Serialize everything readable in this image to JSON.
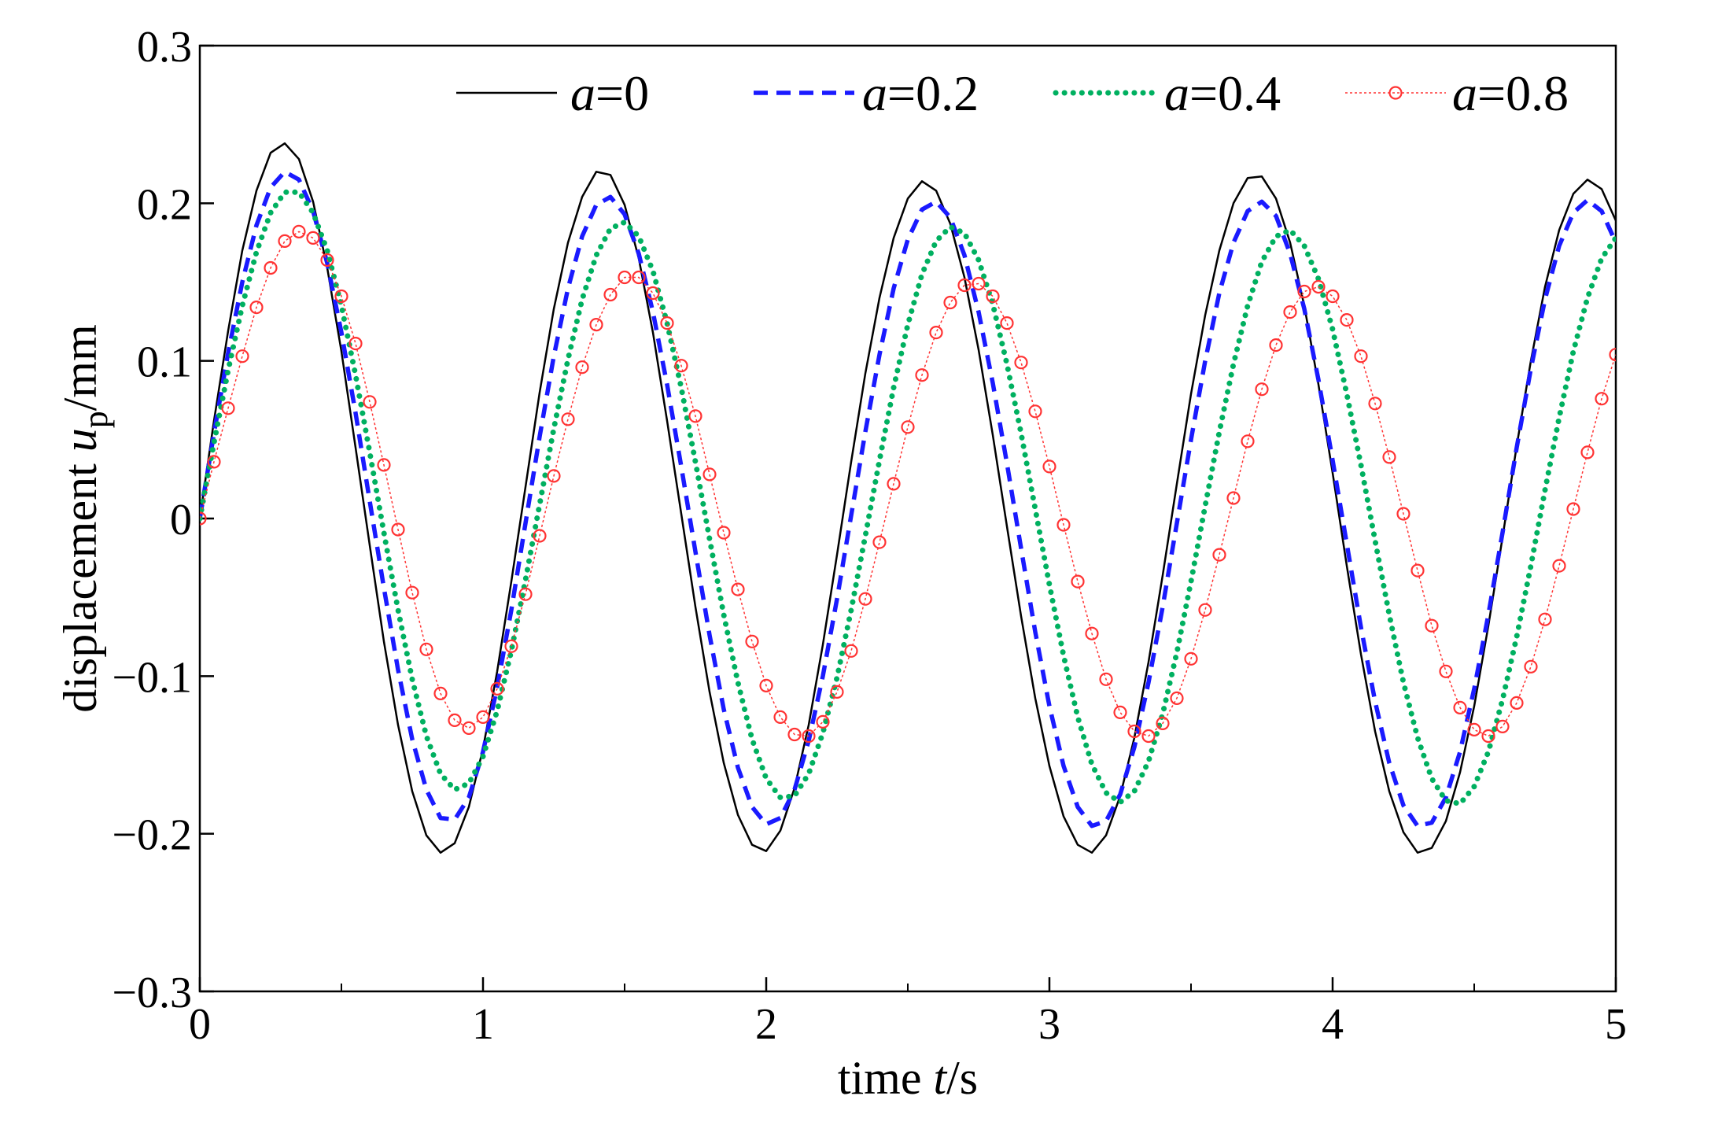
{
  "chart_data": {
    "type": "line",
    "title": "",
    "xlabel": "time t/s",
    "xlabel_parts": [
      "time ",
      "t",
      "/s"
    ],
    "ylabel": "displacement up/mm",
    "ylabel_parts": [
      "displacement ",
      "u",
      "p",
      "/mm"
    ],
    "xlim": [
      0,
      5
    ],
    "ylim": [
      -0.3,
      0.3
    ],
    "xticks": [
      0,
      1,
      2,
      3,
      4,
      5
    ],
    "xtick_labels": [
      "0",
      "1",
      "2",
      "3",
      "4",
      "5"
    ],
    "xminor": [
      0.5,
      1.5,
      2.5,
      3.5,
      4.5
    ],
    "yticks": [
      -0.3,
      -0.2,
      -0.1,
      0,
      0.1,
      0.2,
      0.3
    ],
    "ytick_labels": [
      "−0.3",
      "−0.2",
      "−0.1",
      "0",
      "0.1",
      "0.2",
      "0.3"
    ],
    "grid": false,
    "legend_position": "top",
    "series": [
      {
        "name": "a=0",
        "name_parts": [
          "a",
          "=0"
        ],
        "color": "#000000",
        "style": "solid",
        "x": [
          0,
          0.05,
          0.1,
          0.15,
          0.2,
          0.25,
          0.3,
          0.35,
          0.4,
          0.45,
          0.5,
          0.55,
          0.6,
          0.65,
          0.7,
          0.75,
          0.8,
          0.85,
          0.9,
          0.95,
          1.0,
          1.05,
          1.1,
          1.15,
          1.2,
          1.25,
          1.3,
          1.35,
          1.4,
          1.45,
          1.5,
          1.55,
          1.6,
          1.65,
          1.7,
          1.75,
          1.8,
          1.85,
          1.9,
          1.95,
          2.0,
          2.05,
          2.1,
          2.15,
          2.2,
          2.25,
          2.3,
          2.35,
          2.4,
          2.45,
          2.5,
          2.55,
          2.6,
          2.65,
          2.7,
          2.75,
          2.8,
          2.85,
          2.9,
          2.95,
          3.0,
          3.05,
          3.1,
          3.15,
          3.2,
          3.25,
          3.3,
          3.35,
          3.4,
          3.45,
          3.5,
          3.55,
          3.6,
          3.65,
          3.7,
          3.75,
          3.8,
          3.85,
          3.9,
          3.95,
          4.0,
          4.05,
          4.1,
          4.15,
          4.2,
          4.25,
          4.3,
          4.35,
          4.4,
          4.45,
          4.5,
          4.55,
          4.6,
          4.65,
          4.7,
          4.75,
          4.8,
          4.85,
          4.9,
          4.95,
          5.0
        ],
        "y": [
          0.0,
          0.062,
          0.119,
          0.17,
          0.208,
          0.232,
          0.238,
          0.228,
          0.201,
          0.159,
          0.106,
          0.045,
          -0.017,
          -0.078,
          -0.131,
          -0.173,
          -0.201,
          -0.212,
          -0.206,
          -0.183,
          -0.146,
          -0.097,
          -0.04,
          0.02,
          0.08,
          0.133,
          0.175,
          0.204,
          0.22,
          0.218,
          0.199,
          0.165,
          0.118,
          0.062,
          0.003,
          -0.056,
          -0.11,
          -0.155,
          -0.188,
          -0.207,
          -0.211,
          -0.198,
          -0.171,
          -0.131,
          -0.08,
          -0.023,
          0.036,
          0.092,
          0.14,
          0.178,
          0.203,
          0.214,
          0.208,
          0.187,
          0.153,
          0.107,
          0.053,
          -0.005,
          -0.062,
          -0.114,
          -0.157,
          -0.189,
          -0.207,
          -0.212,
          -0.201,
          -0.176,
          -0.139,
          -0.091,
          -0.036,
          0.022,
          0.079,
          0.129,
          0.17,
          0.2,
          0.216,
          0.217,
          0.203,
          0.175,
          0.135,
          0.085,
          0.029,
          -0.03,
          -0.086,
          -0.135,
          -0.173,
          -0.199,
          -0.212,
          -0.209,
          -0.192,
          -0.161,
          -0.119,
          -0.068,
          -0.012,
          0.046,
          0.1,
          0.147,
          0.183,
          0.206,
          0.215,
          0.209,
          0.189
        ]
      },
      {
        "name": "a=0.2",
        "name_parts": [
          "a",
          "=0.2"
        ],
        "color": "#1a1aff",
        "style": "dashed",
        "x": [
          0,
          0.05,
          0.1,
          0.15,
          0.2,
          0.25,
          0.3,
          0.35,
          0.4,
          0.45,
          0.5,
          0.55,
          0.6,
          0.65,
          0.7,
          0.75,
          0.8,
          0.85,
          0.9,
          0.95,
          1.0,
          1.05,
          1.1,
          1.15,
          1.2,
          1.25,
          1.3,
          1.35,
          1.4,
          1.45,
          1.5,
          1.55,
          1.6,
          1.65,
          1.7,
          1.75,
          1.8,
          1.85,
          1.9,
          1.95,
          2.0,
          2.05,
          2.1,
          2.15,
          2.2,
          2.25,
          2.3,
          2.35,
          2.4,
          2.45,
          2.5,
          2.55,
          2.6,
          2.65,
          2.7,
          2.75,
          2.8,
          2.85,
          2.9,
          2.95,
          3.0,
          3.05,
          3.1,
          3.15,
          3.2,
          3.25,
          3.3,
          3.35,
          3.4,
          3.45,
          3.5,
          3.55,
          3.6,
          3.65,
          3.7,
          3.75,
          3.8,
          3.85,
          3.9,
          3.95,
          4.0,
          4.05,
          4.1,
          4.15,
          4.2,
          4.25,
          4.3,
          4.35,
          4.4,
          4.45,
          4.5,
          4.55,
          4.6,
          4.65,
          4.7,
          4.75,
          4.8,
          4.85,
          4.9,
          4.95,
          5.0
        ],
        "y": [
          0.0,
          0.054,
          0.105,
          0.15,
          0.186,
          0.21,
          0.22,
          0.215,
          0.195,
          0.162,
          0.118,
          0.067,
          0.011,
          -0.044,
          -0.096,
          -0.14,
          -0.172,
          -0.19,
          -0.191,
          -0.177,
          -0.148,
          -0.107,
          -0.058,
          -0.003,
          0.052,
          0.103,
          0.146,
          0.179,
          0.199,
          0.204,
          0.193,
          0.168,
          0.131,
          0.085,
          0.033,
          -0.021,
          -0.074,
          -0.121,
          -0.158,
          -0.183,
          -0.194,
          -0.19,
          -0.172,
          -0.141,
          -0.1,
          -0.051,
          0.002,
          0.055,
          0.104,
          0.146,
          0.177,
          0.196,
          0.201,
          0.191,
          0.167,
          0.131,
          0.086,
          0.035,
          -0.019,
          -0.072,
          -0.119,
          -0.157,
          -0.183,
          -0.195,
          -0.192,
          -0.175,
          -0.145,
          -0.104,
          -0.056,
          -0.003,
          0.05,
          0.1,
          0.143,
          0.175,
          0.195,
          0.201,
          0.192,
          0.168,
          0.133,
          0.088,
          0.037,
          -0.016,
          -0.069,
          -0.116,
          -0.155,
          -0.182,
          -0.195,
          -0.193,
          -0.177,
          -0.148,
          -0.108,
          -0.061,
          -0.009,
          0.045,
          0.095,
          0.139,
          0.173,
          0.194,
          0.202,
          0.195,
          0.175
        ]
      },
      {
        "name": "a=0.4",
        "name_parts": [
          "a",
          "=0.4"
        ],
        "color": "#00b060",
        "style": "dotted",
        "x": [
          0,
          0.05,
          0.1,
          0.15,
          0.2,
          0.25,
          0.3,
          0.35,
          0.4,
          0.45,
          0.5,
          0.55,
          0.6,
          0.65,
          0.7,
          0.75,
          0.8,
          0.85,
          0.9,
          0.95,
          1.0,
          1.05,
          1.1,
          1.15,
          1.2,
          1.25,
          1.3,
          1.35,
          1.4,
          1.45,
          1.5,
          1.55,
          1.6,
          1.65,
          1.7,
          1.75,
          1.8,
          1.85,
          1.9,
          1.95,
          2.0,
          2.05,
          2.1,
          2.15,
          2.2,
          2.25,
          2.3,
          2.35,
          2.4,
          2.45,
          2.5,
          2.55,
          2.6,
          2.65,
          2.7,
          2.75,
          2.8,
          2.85,
          2.9,
          2.95,
          3.0,
          3.05,
          3.1,
          3.15,
          3.2,
          3.25,
          3.3,
          3.35,
          3.4,
          3.45,
          3.5,
          3.55,
          3.6,
          3.65,
          3.7,
          3.75,
          3.8,
          3.85,
          3.9,
          3.95,
          4.0,
          4.05,
          4.1,
          4.15,
          4.2,
          4.25,
          4.3,
          4.35,
          4.4,
          4.45,
          4.5,
          4.55,
          4.6,
          4.65,
          4.7,
          4.75,
          4.8,
          4.85,
          4.9,
          4.95,
          5.0
        ],
        "y": [
          0.0,
          0.048,
          0.094,
          0.135,
          0.169,
          0.194,
          0.207,
          0.207,
          0.194,
          0.17,
          0.135,
          0.091,
          0.042,
          -0.009,
          -0.058,
          -0.102,
          -0.138,
          -0.162,
          -0.172,
          -0.168,
          -0.151,
          -0.122,
          -0.084,
          -0.039,
          0.009,
          0.057,
          0.101,
          0.139,
          0.167,
          0.184,
          0.188,
          0.179,
          0.157,
          0.124,
          0.083,
          0.036,
          -0.013,
          -0.061,
          -0.104,
          -0.14,
          -0.165,
          -0.177,
          -0.176,
          -0.162,
          -0.136,
          -0.101,
          -0.058,
          -0.011,
          0.037,
          0.083,
          0.123,
          0.155,
          0.176,
          0.185,
          0.181,
          0.164,
          0.136,
          0.098,
          0.054,
          0.006,
          -0.042,
          -0.087,
          -0.126,
          -0.156,
          -0.174,
          -0.18,
          -0.173,
          -0.154,
          -0.124,
          -0.085,
          -0.04,
          0.008,
          0.055,
          0.098,
          0.135,
          0.163,
          0.179,
          0.183,
          0.173,
          0.152,
          0.12,
          0.079,
          0.034,
          -0.014,
          -0.061,
          -0.104,
          -0.139,
          -0.165,
          -0.179,
          -0.181,
          -0.17,
          -0.148,
          -0.115,
          -0.075,
          -0.03,
          0.018,
          0.064,
          0.106,
          0.14,
          0.165,
          0.178
        ]
      },
      {
        "name": "a=0.8",
        "name_parts": [
          "a",
          "=0.8"
        ],
        "color": "#ff3333",
        "style": "markers",
        "x": [
          0,
          0.05,
          0.1,
          0.15,
          0.2,
          0.25,
          0.3,
          0.35,
          0.4,
          0.45,
          0.5,
          0.55,
          0.6,
          0.65,
          0.7,
          0.75,
          0.8,
          0.85,
          0.9,
          0.95,
          1.0,
          1.05,
          1.1,
          1.15,
          1.2,
          1.25,
          1.3,
          1.35,
          1.4,
          1.45,
          1.5,
          1.55,
          1.6,
          1.65,
          1.7,
          1.75,
          1.8,
          1.85,
          1.9,
          1.95,
          2.0,
          2.05,
          2.1,
          2.15,
          2.2,
          2.25,
          2.3,
          2.35,
          2.4,
          2.45,
          2.5,
          2.55,
          2.6,
          2.65,
          2.7,
          2.75,
          2.8,
          2.85,
          2.9,
          2.95,
          3.0,
          3.05,
          3.1,
          3.15,
          3.2,
          3.25,
          3.3,
          3.35,
          3.4,
          3.45,
          3.5,
          3.55,
          3.6,
          3.65,
          3.7,
          3.75,
          3.8,
          3.85,
          3.9,
          3.95,
          4.0,
          4.05,
          4.1,
          4.15,
          4.2,
          4.25,
          4.3,
          4.35,
          4.4,
          4.45,
          4.5,
          4.55,
          4.6,
          4.65,
          4.7,
          4.75,
          4.8,
          4.85,
          4.9,
          4.95,
          5.0
        ],
        "y": [
          0.0,
          0.036,
          0.07,
          0.103,
          0.134,
          0.159,
          0.176,
          0.182,
          0.178,
          0.164,
          0.141,
          0.111,
          0.074,
          0.034,
          -0.007,
          -0.047,
          -0.083,
          -0.111,
          -0.128,
          -0.133,
          -0.126,
          -0.108,
          -0.081,
          -0.048,
          -0.011,
          0.027,
          0.063,
          0.096,
          0.123,
          0.142,
          0.153,
          0.153,
          0.143,
          0.124,
          0.097,
          0.065,
          0.028,
          -0.009,
          -0.045,
          -0.078,
          -0.106,
          -0.126,
          -0.137,
          -0.138,
          -0.129,
          -0.11,
          -0.084,
          -0.051,
          -0.015,
          0.022,
          0.058,
          0.091,
          0.118,
          0.137,
          0.148,
          0.149,
          0.141,
          0.124,
          0.099,
          0.068,
          0.033,
          -0.004,
          -0.04,
          -0.073,
          -0.102,
          -0.123,
          -0.135,
          -0.138,
          -0.13,
          -0.114,
          -0.089,
          -0.058,
          -0.023,
          0.013,
          0.049,
          0.082,
          0.11,
          0.131,
          0.144,
          0.147,
          0.141,
          0.126,
          0.103,
          0.073,
          0.039,
          0.003,
          -0.033,
          -0.068,
          -0.097,
          -0.12,
          -0.134,
          -0.138,
          -0.132,
          -0.117,
          -0.094,
          -0.064,
          -0.03,
          0.006,
          0.042,
          0.076,
          0.104
        ]
      }
    ]
  }
}
